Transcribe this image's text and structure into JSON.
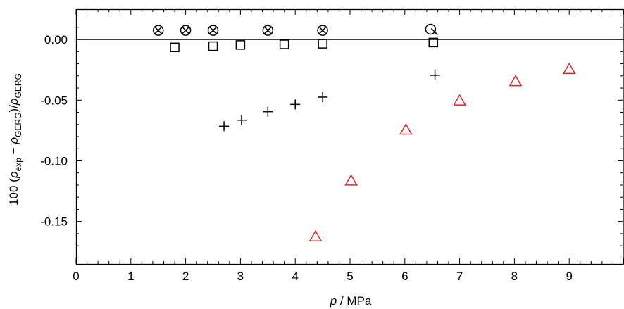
{
  "chart_data": {
    "type": "scatter",
    "xlabel": {
      "symbol": "p",
      "rest": " / MPa"
    },
    "ylabel": {
      "prefix": "100 (",
      "rho": "ρ",
      "sub_exp": "exp",
      "minus": " − ",
      "sub_gerg": "GERG",
      "mid": ")/",
      "sub_gerg2": "GERG"
    },
    "xlim": [
      0,
      10
    ],
    "ylim": [
      -0.185,
      0.025
    ],
    "x_ticks": [
      "0",
      "1",
      "2",
      "3",
      "4",
      "5",
      "6",
      "7",
      "8",
      "9"
    ],
    "x_tick_values": [
      0,
      1,
      2,
      3,
      4,
      5,
      6,
      7,
      8,
      9
    ],
    "y_ticks": [
      "0.00",
      "-0.05",
      "-0.10",
      "-0.15"
    ],
    "y_tick_values": [
      0.0,
      -0.05,
      -0.1,
      -0.15
    ],
    "zero_line": true,
    "grid": false,
    "colors": {
      "red": "#d62728",
      "black": "#000000"
    },
    "series": [
      {
        "marker": "circle-x",
        "color": "#000000",
        "points": [
          [
            1.5,
            0.0075
          ],
          [
            2.0,
            0.0075
          ],
          [
            2.5,
            0.0075
          ],
          [
            3.5,
            0.0075
          ],
          [
            4.5,
            0.0075
          ]
        ]
      },
      {
        "marker": "circle-slash",
        "color": "#000000",
        "points": [
          [
            6.47,
            0.0085
          ]
        ]
      },
      {
        "marker": "square",
        "color": "#000000",
        "points": [
          [
            1.8,
            -0.0065
          ],
          [
            2.5,
            -0.0055
          ],
          [
            3.0,
            -0.0045
          ],
          [
            3.8,
            -0.004
          ],
          [
            4.5,
            -0.0035
          ],
          [
            6.52,
            -0.0025
          ]
        ]
      },
      {
        "marker": "plus",
        "color": "#000000",
        "points": [
          [
            2.7,
            -0.0715
          ],
          [
            3.02,
            -0.0665
          ],
          [
            3.5,
            -0.0595
          ],
          [
            4.0,
            -0.0535
          ],
          [
            4.5,
            -0.0475
          ],
          [
            6.55,
            -0.0295
          ]
        ]
      },
      {
        "marker": "triangle",
        "color": "#d62728",
        "points": [
          [
            4.37,
            -0.1625
          ],
          [
            5.02,
            -0.1165
          ],
          [
            6.02,
            -0.0745
          ],
          [
            7.0,
            -0.0505
          ],
          [
            8.02,
            -0.0345
          ],
          [
            9.0,
            -0.0245
          ]
        ]
      }
    ]
  }
}
